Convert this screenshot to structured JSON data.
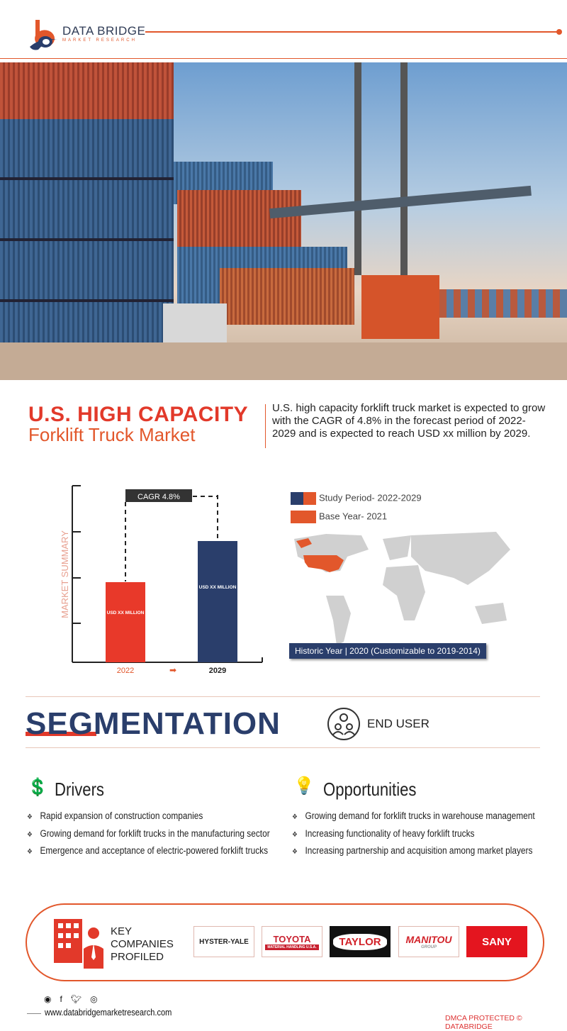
{
  "brand": {
    "name": "DATA BRIDGE",
    "tagline": "MARKET RESEARCH",
    "colors": {
      "orange": "#e2572b",
      "navy": "#2a3e6b",
      "red": "#e2392a"
    }
  },
  "hero": {
    "image": "shipping containers and container handler forklift"
  },
  "title": {
    "line1": "U.S. HIGH CAPACITY",
    "line2": "Forklift Truck Market"
  },
  "description": "U.S. high capacity forklift truck market is expected to grow with the CAGR of 4.8% in the forecast period of 2022-2029 and is expected to reach USD xx million by 2029.",
  "chart_data": {
    "type": "bar",
    "ylabel": "MARKET SUMMARY",
    "categories": [
      "2022",
      "2029"
    ],
    "bar_labels": [
      "USD XX MILLION",
      "USD XX MILLION"
    ],
    "cagr_label": "CAGR 4.8%",
    "colors": [
      "#e8392a",
      "#2a3e6b"
    ]
  },
  "legend": {
    "study_period": "Study Period- 2022-2029",
    "base_year": "Base Year- 2021",
    "historic_year": "Historic Year | 2020 (Customizable to 2019-2014)"
  },
  "segmentation": {
    "title": "SEGMENTATION",
    "item": "END USER"
  },
  "drivers": {
    "title": "Drivers",
    "items": [
      "Rapid expansion of construction companies",
      "Growing demand for forklift trucks in the manufacturing sector",
      "Emergence and acceptance of electric-powered forklift trucks"
    ]
  },
  "opportunities": {
    "title": "Opportunities",
    "items": [
      "Growing demand for forklift trucks in warehouse management",
      "Increasing functionality of heavy forklift trucks",
      "Increasing partnership and acquisition among market players"
    ]
  },
  "companies": {
    "label_lines": [
      "KEY",
      "COMPANIES",
      "PROFILED"
    ],
    "logos": [
      "HYSTER-YALE",
      "TOYOTA",
      "TAYLOR",
      "MANITOU",
      "SANY"
    ],
    "toyota_sub": "MATERIAL HANDLING U.S.A.",
    "manitou_sub": "GROUP"
  },
  "footer": {
    "social_icons": [
      "whatsapp-icon",
      "facebook-icon",
      "twitter-icon",
      "instagram-icon"
    ],
    "url": "www.databridgemarketresearch.com",
    "dmca": "DMCA PROTECTED © DATABRIDGE"
  }
}
